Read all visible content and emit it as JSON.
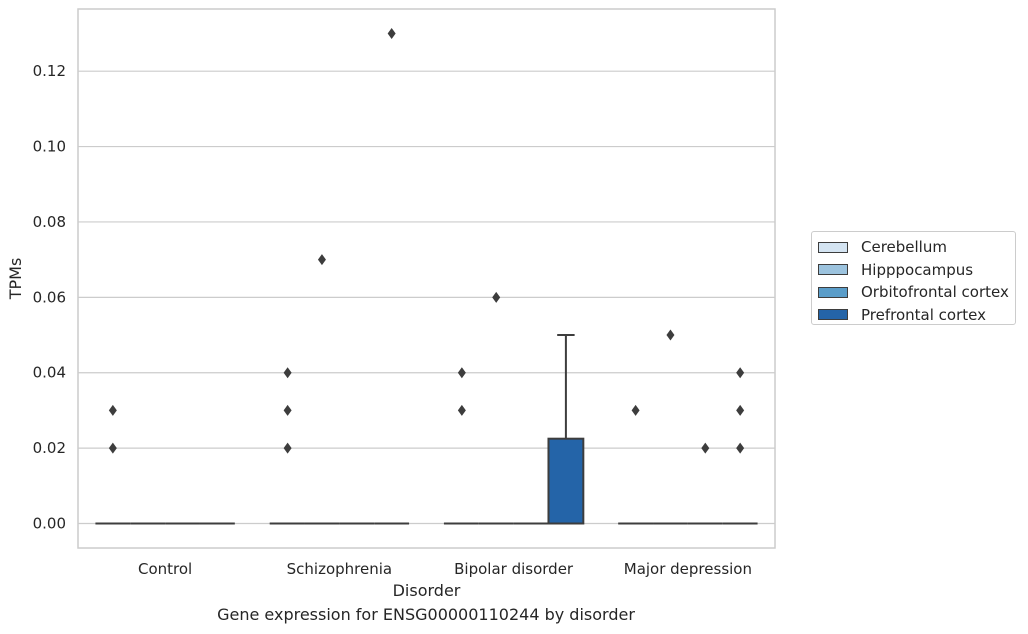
{
  "chart_data": {
    "type": "box",
    "xlabel": "Disorder",
    "ylabel": "TPMs",
    "caption": "Gene expression for ENSG00000110244 by disorder",
    "categories": [
      "Control",
      "Schizophrenia",
      "Bipolar disorder",
      "Major depression"
    ],
    "ylim": [
      -0.0065,
      0.1365
    ],
    "yticks": [
      "0.00",
      "0.02",
      "0.04",
      "0.06",
      "0.08",
      "0.10",
      "0.12"
    ],
    "ytick_values": [
      0,
      0.02,
      0.04,
      0.06,
      0.08,
      0.1,
      0.12
    ],
    "grid": true,
    "legend_position": "right",
    "series": [
      {
        "name": "Cerebellum",
        "color": "#d4e4f2",
        "boxes": [
          {
            "q1": 0,
            "median": 0,
            "q3": 0,
            "whisker_low": 0,
            "whisker_high": 0,
            "outliers": [
              0.03,
              0.02
            ]
          },
          {
            "q1": 0,
            "median": 0,
            "q3": 0,
            "whisker_low": 0,
            "whisker_high": 0,
            "outliers": []
          },
          {
            "q1": 0,
            "median": 0,
            "q3": 0,
            "whisker_low": 0,
            "whisker_high": 0,
            "outliers": []
          },
          {
            "q1": 0,
            "median": 0,
            "q3": 0,
            "whisker_low": 0,
            "whisker_high": 0,
            "outliers": [
              0.03
            ]
          }
        ]
      },
      {
        "name": "Hipppocampus",
        "color": "#9cc3de",
        "boxes": [
          {
            "q1": 0,
            "median": 0,
            "q3": 0,
            "whisker_low": 0,
            "whisker_high": 0,
            "outliers": []
          },
          {
            "q1": 0,
            "median": 0,
            "q3": 0,
            "whisker_low": 0,
            "whisker_high": 0,
            "outliers": [
              0.07
            ]
          },
          {
            "q1": 0,
            "median": 0,
            "q3": 0,
            "whisker_low": 0,
            "whisker_high": 0,
            "outliers": [
              0.06
            ]
          },
          {
            "q1": 0,
            "median": 0,
            "q3": 0,
            "whisker_low": 0,
            "whisker_high": 0,
            "outliers": [
              0.05
            ]
          }
        ]
      },
      {
        "name": "Orbitofrontal cortex",
        "color": "#5a9dc9",
        "boxes": [
          {
            "q1": 0,
            "median": 0,
            "q3": 0,
            "whisker_low": 0,
            "whisker_high": 0,
            "outliers": []
          },
          {
            "q1": 0,
            "median": 0,
            "q3": 0,
            "whisker_low": 0,
            "whisker_high": 0,
            "outliers": []
          },
          {
            "q1": 0,
            "median": 0,
            "q3": 0,
            "whisker_low": 0,
            "whisker_high": 0,
            "outliers": []
          },
          {
            "q1": 0,
            "median": 0,
            "q3": 0,
            "whisker_low": 0,
            "whisker_high": 0,
            "outliers": [
              0.02
            ]
          }
        ]
      },
      {
        "name": "Prefrontal cortex",
        "color": "#2464a8",
        "boxes": [
          {
            "q1": 0,
            "median": 0,
            "q3": 0,
            "whisker_low": 0,
            "whisker_high": 0,
            "outliers": []
          },
          {
            "q1": 0,
            "median": 0,
            "q3": 0,
            "whisker_low": 0,
            "whisker_high": 0,
            "outliers": [
              0.13
            ]
          },
          {
            "q1": 0,
            "median": 0,
            "q3": 0.0225,
            "whisker_low": 0,
            "whisker_high": 0.05,
            "outliers": []
          },
          {
            "q1": 0,
            "median": 0,
            "q3": 0,
            "whisker_low": 0,
            "whisker_high": 0,
            "outliers": [
              0.04,
              0.03,
              0.02
            ]
          }
        ]
      }
    ],
    "extra_outliers": [
      {
        "category": 1,
        "series_pos": 0.1,
        "values": [
          0.04,
          0.03,
          0.02
        ]
      },
      {
        "category": 2,
        "series_pos": 0.1,
        "values": [
          0.04,
          0.03
        ]
      }
    ]
  }
}
